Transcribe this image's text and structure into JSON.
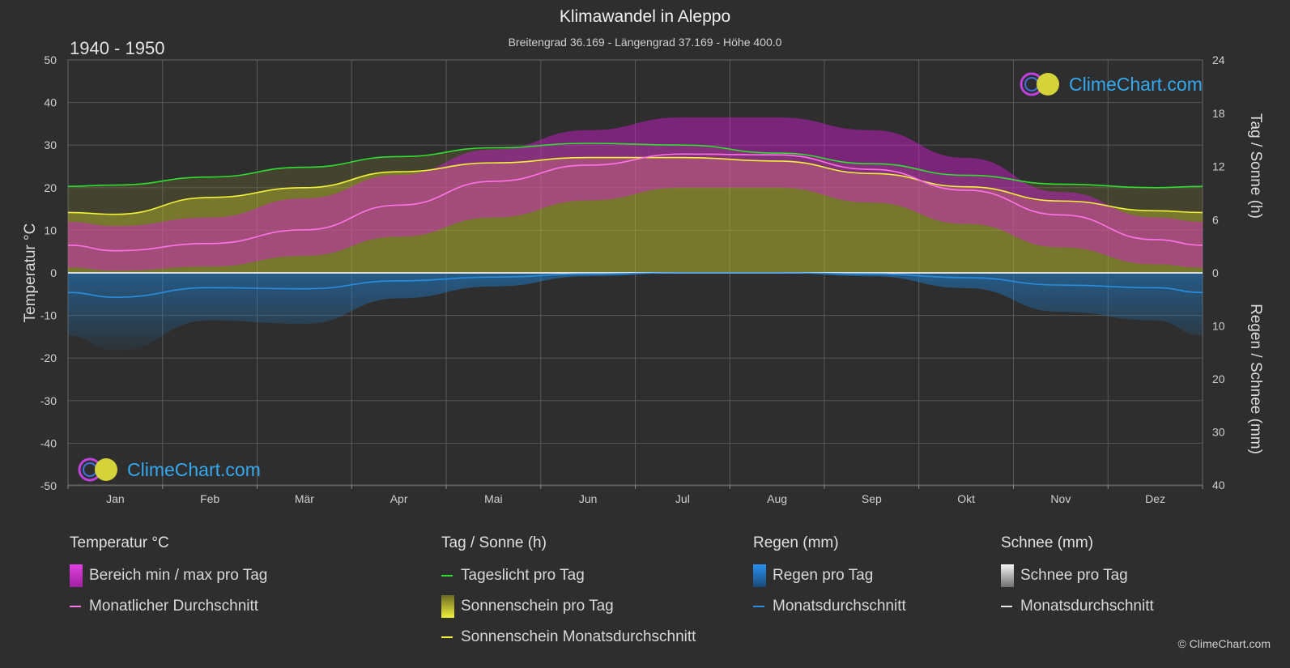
{
  "title": "Klimawandel in Aleppo",
  "subtitle": "Breitengrad 36.169 - Längengrad 37.169 - Höhe 400.0",
  "period": "1940 - 1950",
  "brand": "ClimeChart.com",
  "copyright": "© ClimeChart.com",
  "colors": {
    "background": "#2e2e2e",
    "temp_range": "#d81bd8",
    "temp_avg": "#ff72e8",
    "daylight": "#2ee02e",
    "sunshine_fill": "#b5b52e",
    "sunshine_avg": "#f2f23a",
    "rain": "#1e80d0",
    "rain_avg": "#2a8ee0",
    "snow": "#dddddd"
  },
  "chart_data": {
    "type": "line",
    "months": [
      "Jan",
      "Feb",
      "Mär",
      "Apr",
      "Mai",
      "Jun",
      "Jul",
      "Aug",
      "Sep",
      "Okt",
      "Nov",
      "Dez"
    ],
    "y_left": {
      "label": "Temperatur °C",
      "min": -50,
      "max": 50,
      "ticks": [
        50,
        40,
        30,
        20,
        10,
        0,
        -10,
        -20,
        -30,
        -40,
        -50
      ]
    },
    "y_right_top": {
      "label": "Tag / Sonne (h)",
      "min": 0,
      "max": 24,
      "ticks": [
        24,
        18,
        12,
        6,
        0
      ]
    },
    "y_right_bottom": {
      "label": "Regen / Schnee (mm)",
      "min": 0,
      "max": 40,
      "ticks": [
        0,
        10,
        20,
        30,
        40
      ]
    },
    "series": [
      {
        "name": "Tageslicht pro Tag",
        "axis": "hours",
        "values": [
          9.9,
          10.8,
          11.9,
          13.1,
          14.1,
          14.6,
          14.4,
          13.5,
          12.3,
          11.0,
          10.0,
          9.6
        ]
      },
      {
        "name": "Sonnenschein Monatsdurchschnitt",
        "axis": "hours",
        "values": [
          6.6,
          8.5,
          9.6,
          11.4,
          12.4,
          13.0,
          13.0,
          12.6,
          11.2,
          9.7,
          8.1,
          7.0
        ]
      },
      {
        "name": "Monatlicher Durchschnitt",
        "axis": "temp",
        "values": [
          5.2,
          6.9,
          10.1,
          15.9,
          21.5,
          25.3,
          27.9,
          27.7,
          24.3,
          19.4,
          13.6,
          7.8
        ]
      },
      {
        "name": "Temp max",
        "axis": "temp",
        "values": [
          11,
          13,
          17.5,
          23,
          29,
          33.5,
          36.5,
          36.5,
          33.5,
          27,
          19,
          13
        ]
      },
      {
        "name": "Temp min",
        "axis": "temp",
        "values": [
          0.5,
          1.5,
          4,
          8.5,
          13,
          17,
          20,
          20,
          16.5,
          11.5,
          6,
          2
        ]
      },
      {
        "name": "Regen Monatsdurchschnitt",
        "axis": "mm",
        "values": [
          4.6,
          2.8,
          3.0,
          1.5,
          0.8,
          0.2,
          0.0,
          0.0,
          0.2,
          0.9,
          2.3,
          2.8
        ]
      }
    ]
  },
  "legend": {
    "temp": {
      "heading": "Temperatur °C",
      "range": "Bereich min / max pro Tag",
      "avg": "Monatlicher Durchschnitt"
    },
    "sun": {
      "heading": "Tag / Sonne (h)",
      "daylight": "Tageslicht pro Tag",
      "sunshine": "Sonnenschein pro Tag",
      "sunshine_avg": "Sonnenschein Monatsdurchschnitt"
    },
    "rain": {
      "heading": "Regen (mm)",
      "per_day": "Regen pro Tag",
      "avg": "Monatsdurchschnitt"
    },
    "snow": {
      "heading": "Schnee (mm)",
      "per_day": "Schnee pro Tag",
      "avg": "Monatsdurchschnitt"
    }
  }
}
